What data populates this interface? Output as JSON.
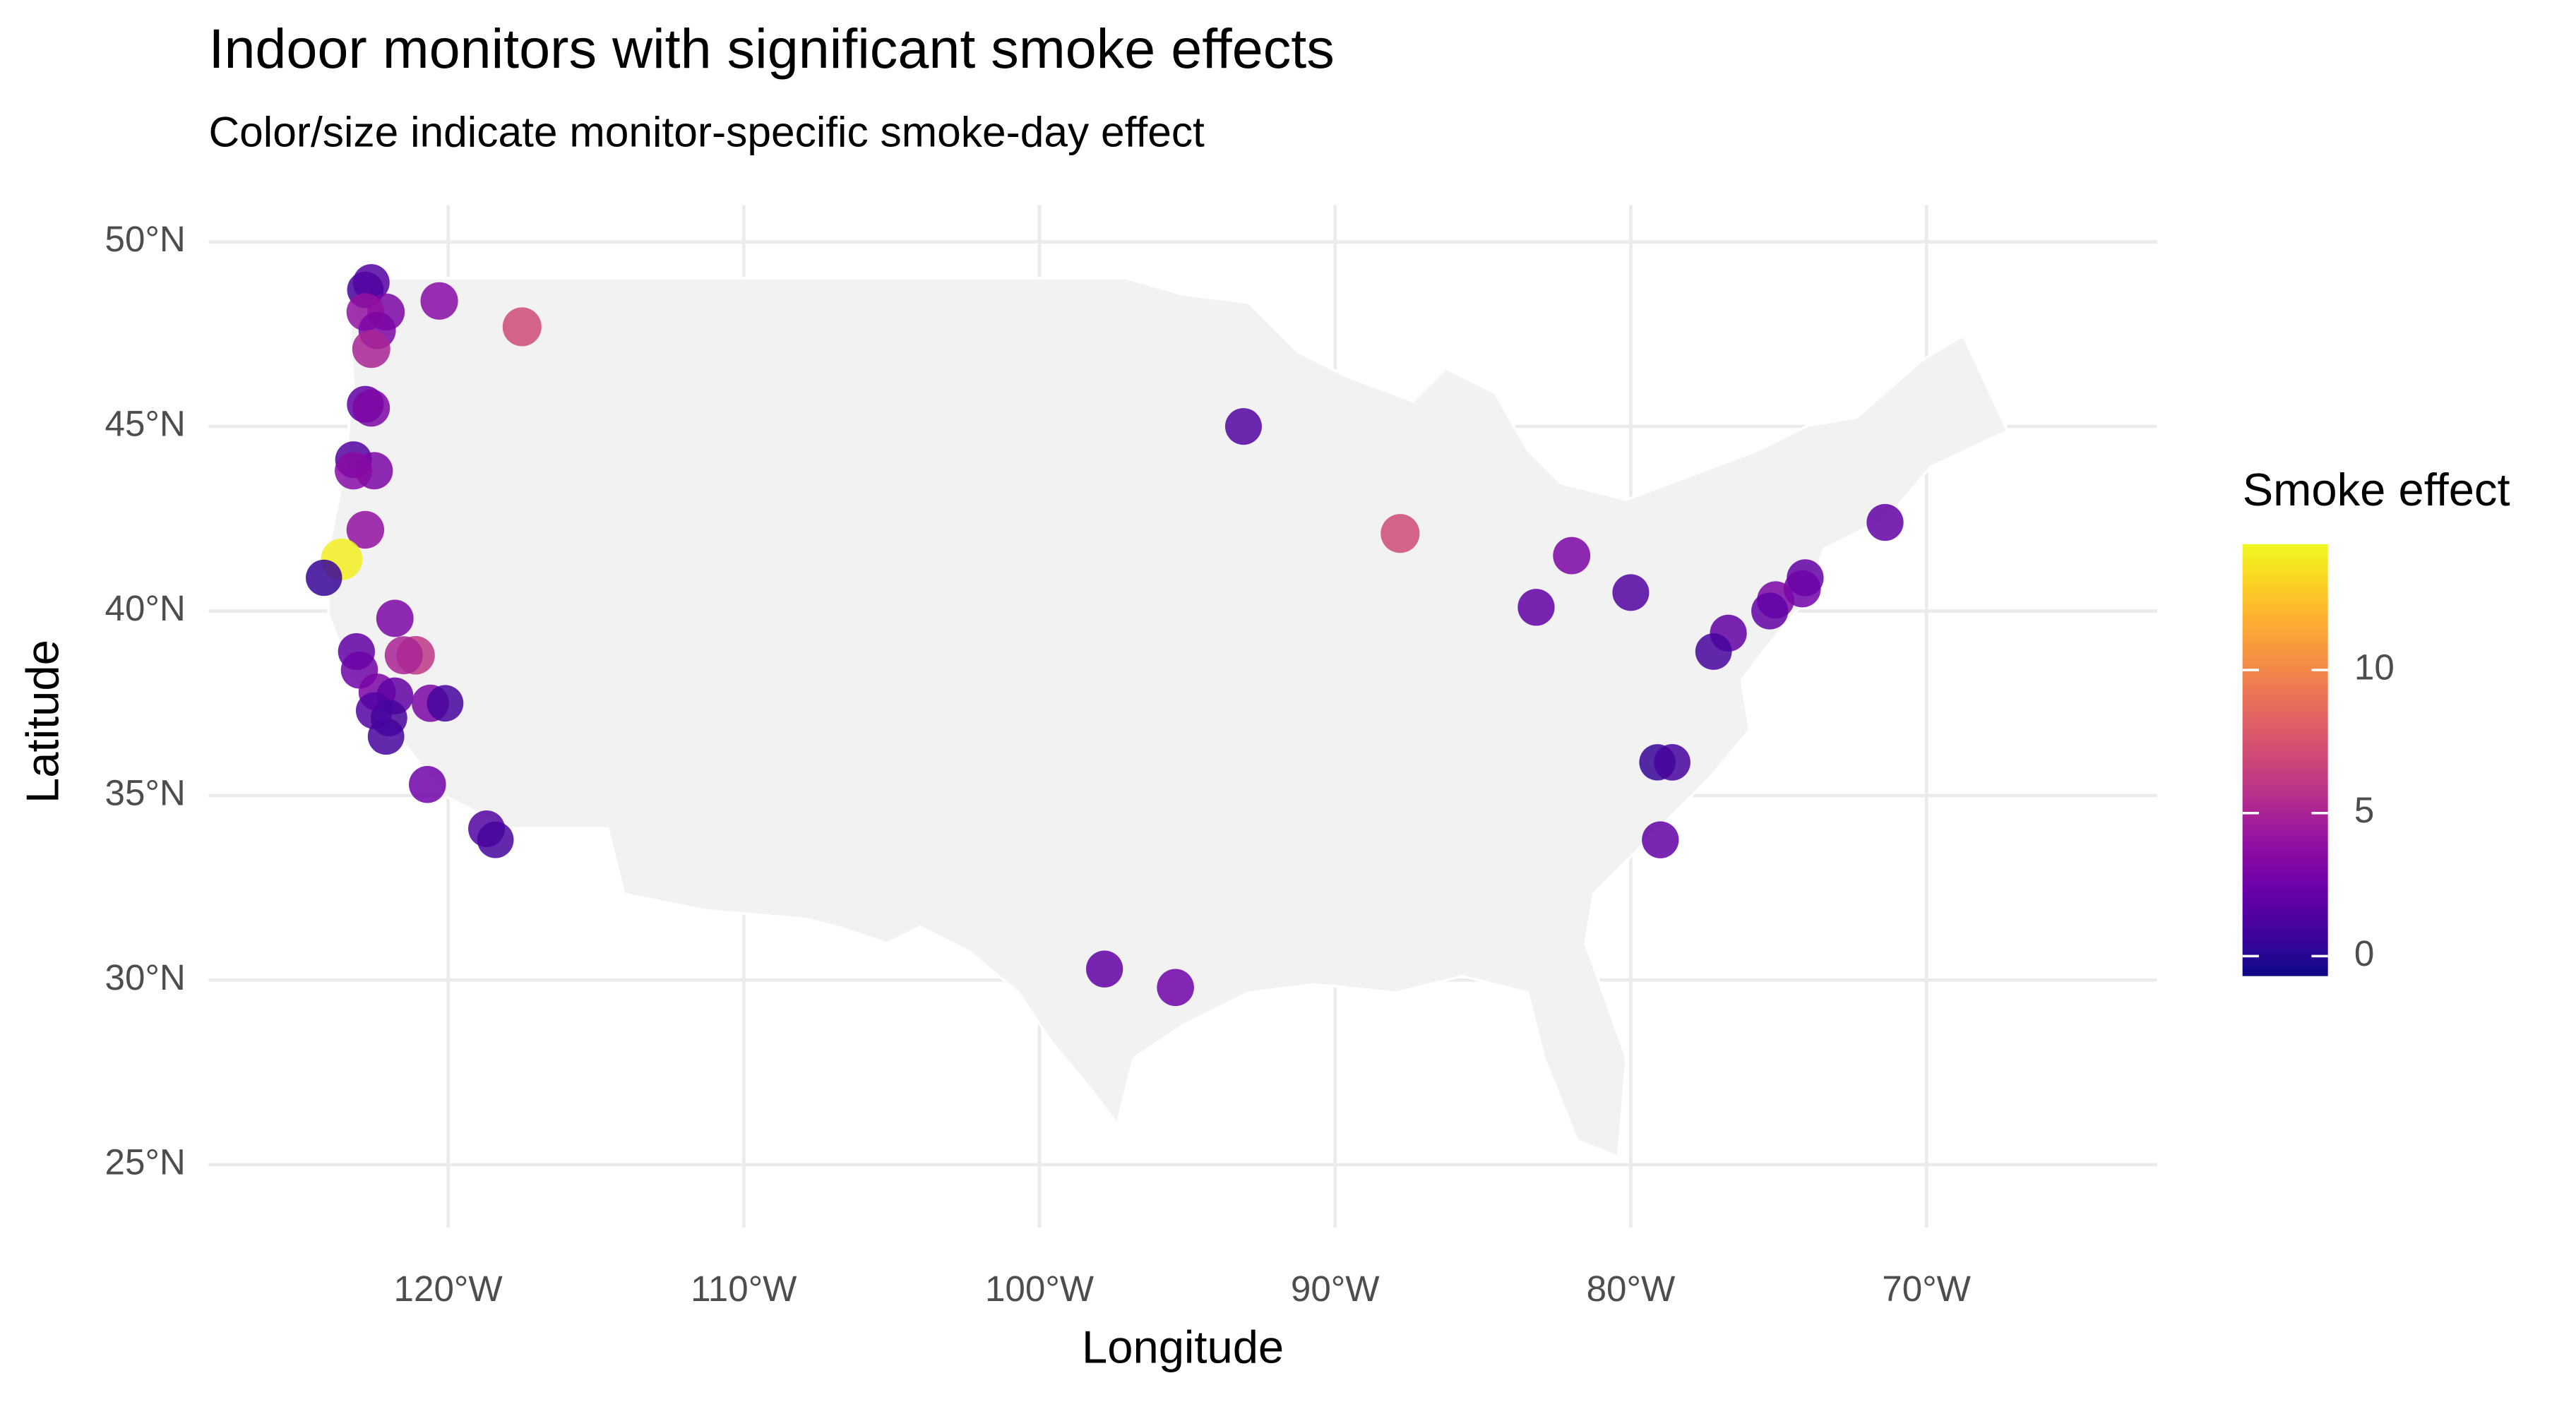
{
  "chart_data": {
    "type": "scatter",
    "title": "Indoor monitors with significant smoke effects",
    "subtitle": "Color/size indicate monitor-specific smoke-day effect",
    "x_label": "Longitude",
    "y_label": "Latitude",
    "xlim": [
      -128.1,
      -62.2
    ],
    "ylim": [
      23.3,
      51
    ],
    "xticks": [
      {
        "value": -120,
        "label": "120°W"
      },
      {
        "value": -110,
        "label": "110°W"
      },
      {
        "value": -100,
        "label": "100°W"
      },
      {
        "value": -90,
        "label": "90°W"
      },
      {
        "value": -80,
        "label": "80°W"
      },
      {
        "value": -70,
        "label": "70°W"
      }
    ],
    "yticks": [
      {
        "value": 25,
        "label": "25°N"
      },
      {
        "value": 30,
        "label": "30°N"
      },
      {
        "value": 35,
        "label": "35°N"
      },
      {
        "value": 40,
        "label": "40°N"
      },
      {
        "value": 45,
        "label": "45°N"
      },
      {
        "value": 50,
        "label": "50°N"
      }
    ],
    "grid": true,
    "x": [
      -122.8,
      -122.6,
      -122.1,
      -122.8,
      -122.4,
      -122.6,
      -120.3,
      -117.5,
      -122.8,
      -122.6,
      -123.2,
      -122.5,
      -123.2,
      -122.8,
      -123.6,
      -124.2,
      -121.8,
      -123.1,
      -123.0,
      -121.1,
      -121.5,
      -122.4,
      -121.8,
      -122.5,
      -120.6,
      -120.1,
      -122.0,
      -122.1,
      -120.7,
      -118.7,
      -118.4,
      -93.1,
      -87.8,
      -82.0,
      -83.2,
      -80.0,
      -71.4,
      -74.1,
      -74.2,
      -75.1,
      -75.3,
      -76.7,
      -77.2,
      -79.1,
      -78.6,
      -79.0,
      -97.8,
      -95.4
    ],
    "y": [
      48.7,
      48.9,
      48.1,
      48.1,
      47.6,
      47.1,
      48.4,
      47.7,
      45.6,
      45.5,
      44.1,
      43.8,
      43.8,
      42.2,
      41.4,
      40.9,
      39.8,
      38.9,
      38.4,
      38.8,
      38.8,
      37.8,
      37.7,
      37.3,
      37.5,
      37.5,
      37.1,
      36.6,
      35.3,
      34.1,
      33.8,
      45.0,
      42.1,
      41.5,
      40.1,
      40.5,
      42.4,
      40.9,
      40.6,
      40.3,
      40.0,
      39.4,
      38.9,
      35.9,
      35.9,
      33.8,
      30.3,
      29.8
    ],
    "values": [
      1,
      1.5,
      3,
      4,
      3,
      5,
      3.5,
      7,
      2,
      3,
      1.5,
      3,
      3.5,
      4,
      14,
      0.5,
      3,
      2,
      2.5,
      6,
      5,
      3,
      2,
      1.5,
      3,
      1,
      1,
      1,
      2.5,
      1.5,
      1,
      1.5,
      7,
      3,
      2,
      1.5,
      2,
      2,
      2.5,
      3,
      2,
      2,
      1,
      0.5,
      1,
      2,
      2,
      2.5
    ],
    "colorbar": {
      "title": "Smoke effect",
      "lim": [
        -0.7,
        14.4
      ],
      "ticks": [
        0,
        5,
        10
      ],
      "colors": [
        "#0d0887",
        "#41049d",
        "#6a00a8",
        "#8f0da4",
        "#b12a90",
        "#cc4778",
        "#e16462",
        "#f2844b",
        "#fca636",
        "#fcce25",
        "#f0f921"
      ]
    }
  }
}
